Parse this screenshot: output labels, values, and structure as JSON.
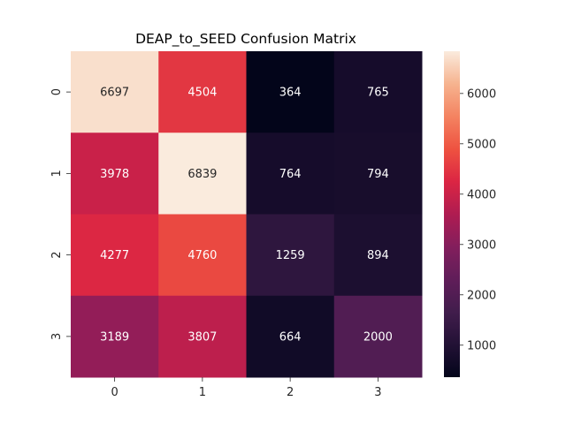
{
  "chart_data": {
    "type": "heatmap",
    "title": "DEAP_to_SEED Confusion Matrix",
    "xlabel": "",
    "ylabel": "",
    "x_categories": [
      "0",
      "1",
      "2",
      "3"
    ],
    "y_categories": [
      "0",
      "1",
      "2",
      "3"
    ],
    "values": [
      [
        6697,
        4504,
        364,
        765
      ],
      [
        3978,
        6839,
        764,
        794
      ],
      [
        4277,
        4760,
        1259,
        894
      ],
      [
        3189,
        3807,
        664,
        2000
      ]
    ],
    "colormap": "rocket",
    "vmin": 364,
    "vmax": 6839,
    "colorbar_ticks": [
      1000,
      2000,
      3000,
      4000,
      5000,
      6000
    ],
    "colorbar_tick_labels": [
      "1000",
      "2000",
      "3000",
      "4000",
      "5000",
      "6000"
    ],
    "annotations": true,
    "grid": false,
    "legend": "colorbar-right"
  }
}
